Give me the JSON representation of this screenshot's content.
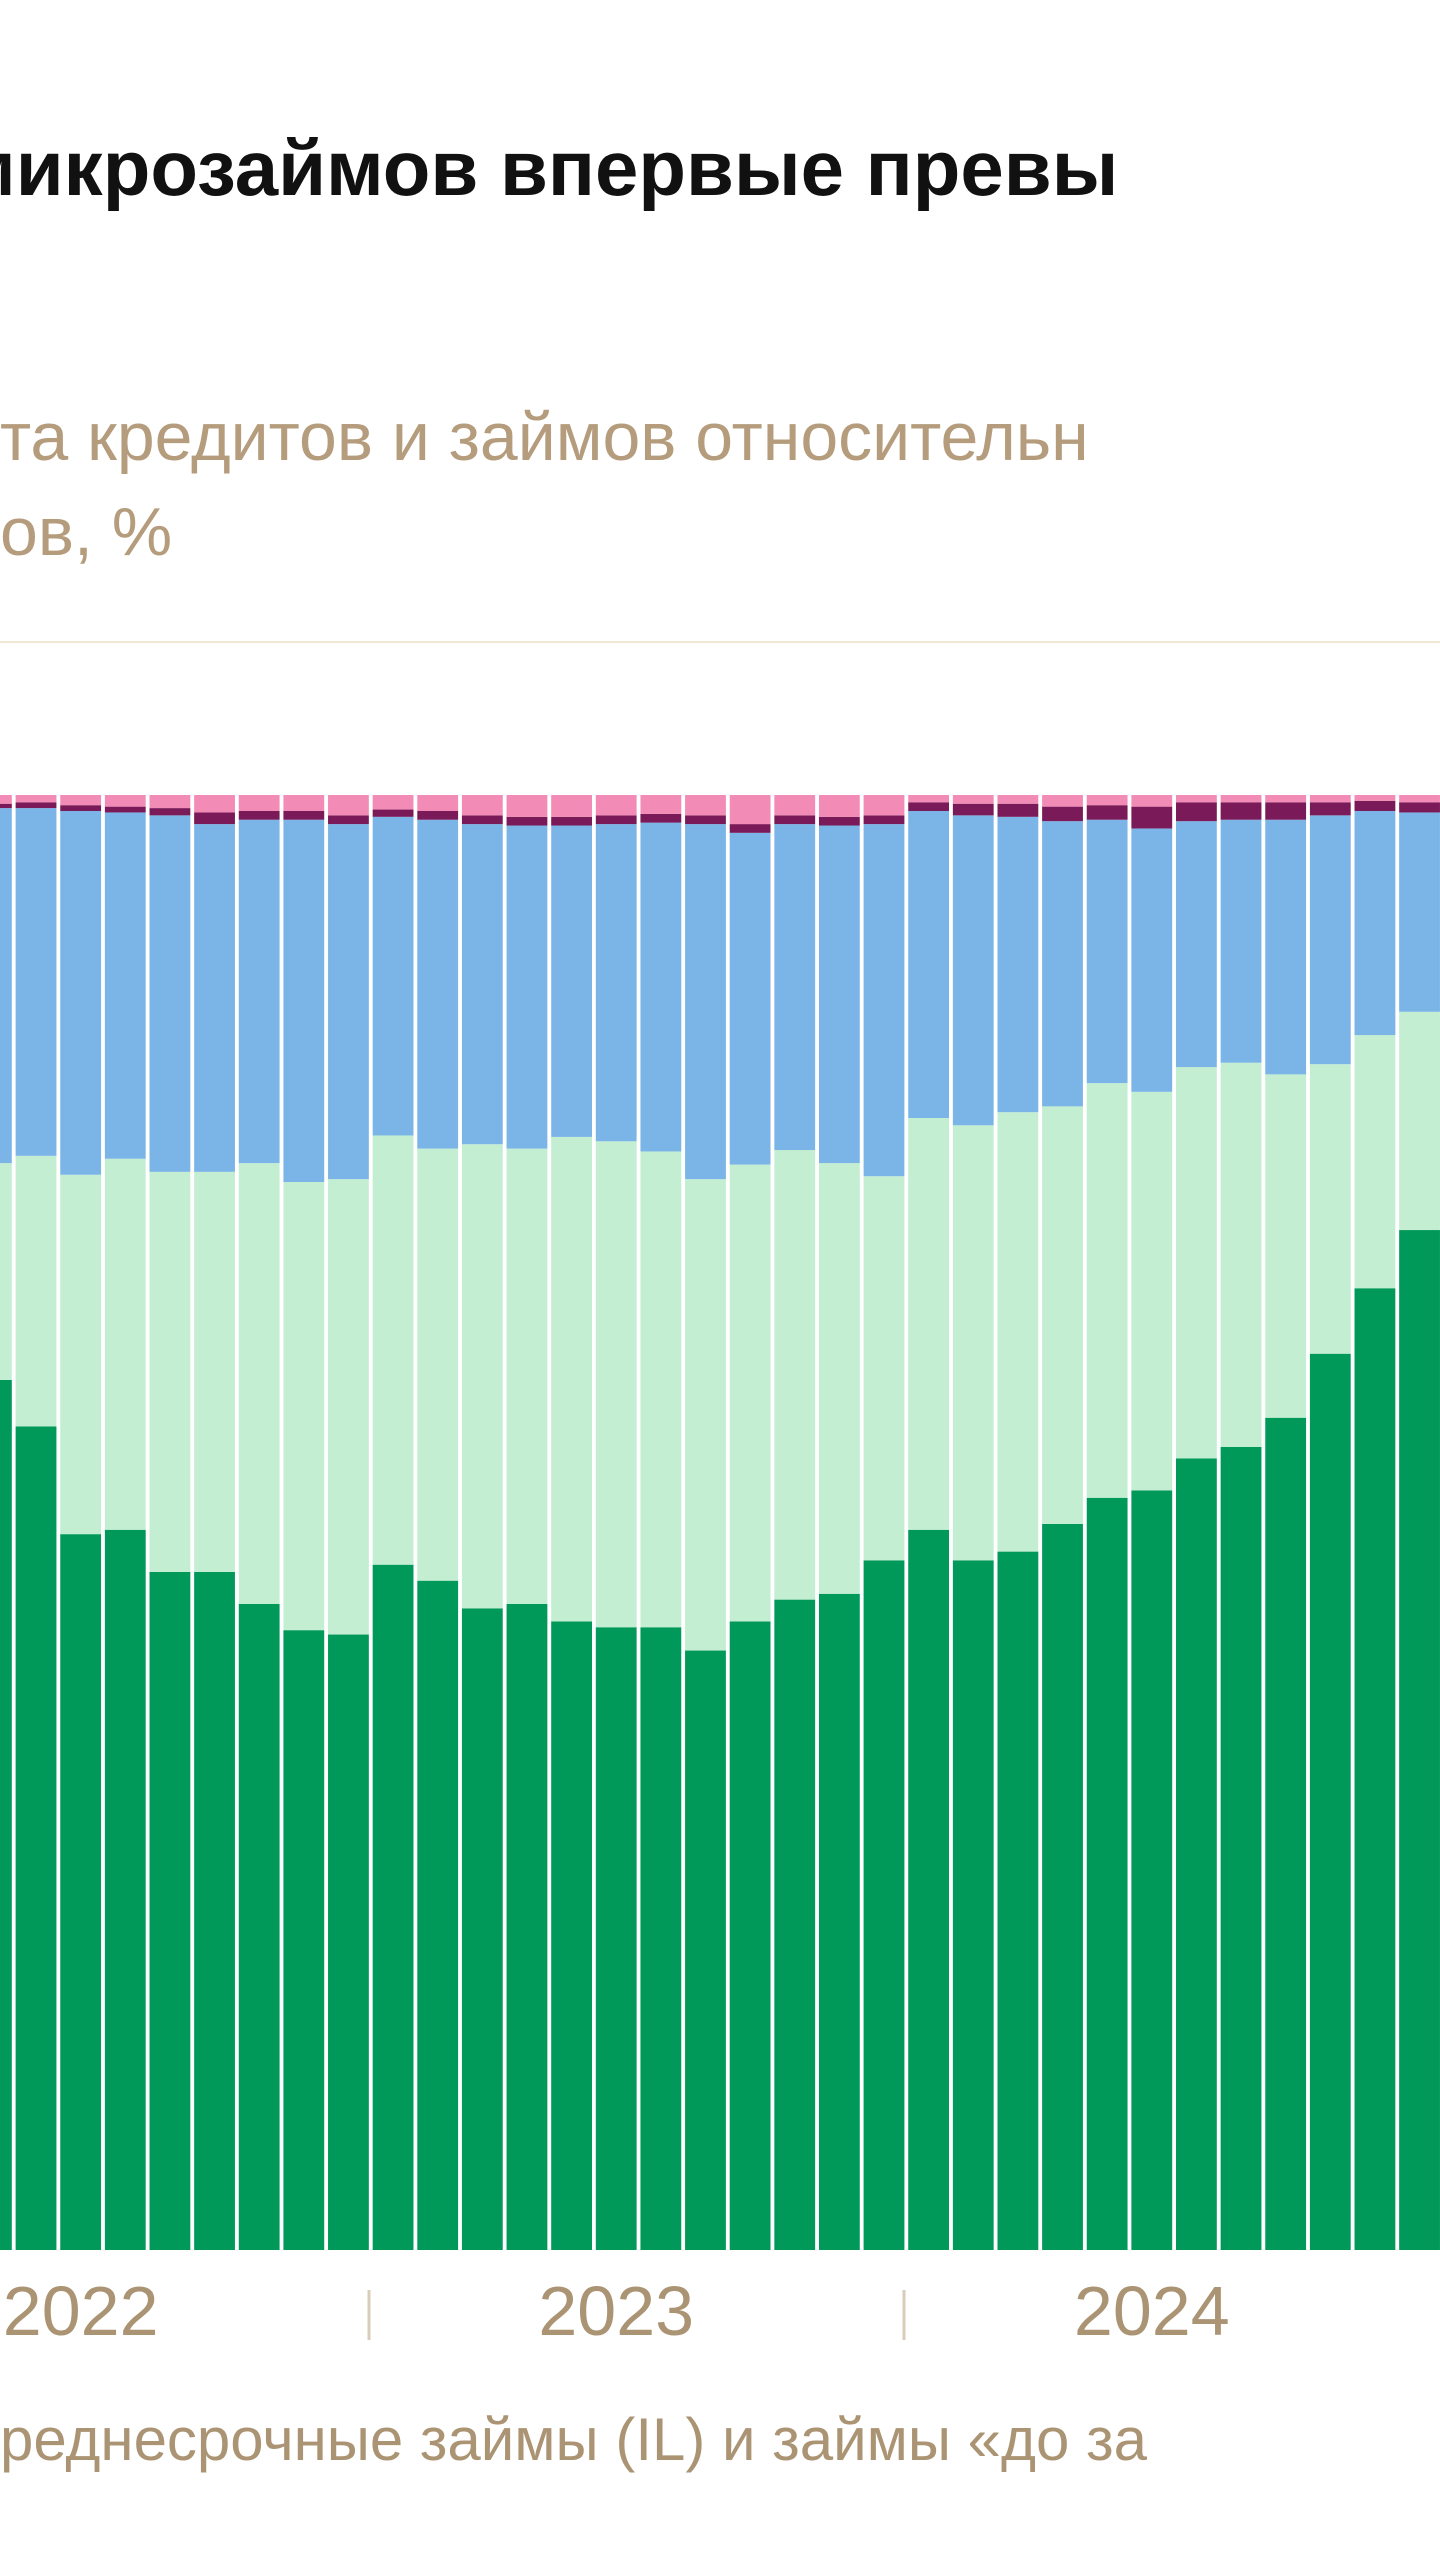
{
  "header": {
    "title": "микрозаймов впервые превы",
    "subtitle_lines": [
      "та кредитов и займов относительн",
      "ов, %"
    ]
  },
  "chart_data": {
    "type": "stacked_bar",
    "ylim": [
      0,
      100
    ],
    "categories": [
      null,
      null,
      "2022",
      null,
      null,
      null,
      null,
      null,
      null,
      null,
      null,
      null,
      null,
      null,
      "2023",
      null,
      null,
      null,
      null,
      null,
      null,
      null,
      null,
      null,
      null,
      null,
      "2024",
      null,
      null,
      null,
      null,
      null,
      null
    ],
    "series": [
      {
        "color": "#00995a",
        "values": [
          59.8,
          56.6,
          49.2,
          49.5,
          46.6,
          46.6,
          44.4,
          42.6,
          42.3,
          47.1,
          46.0,
          44.1,
          44.4,
          43.2,
          42.8,
          42.8,
          41.2,
          43.2,
          44.7,
          45.1,
          47.4,
          49.5,
          47.4,
          48.0,
          49.9,
          51.7,
          52.2,
          54.4,
          55.2,
          57.2,
          61.6,
          66.1,
          70.1
        ]
      },
      {
        "color": "#c3eed2",
        "values": [
          14.9,
          18.6,
          24.7,
          25.5,
          27.5,
          27.5,
          30.3,
          30.8,
          31.3,
          29.5,
          29.7,
          31.9,
          31.3,
          33.3,
          33.4,
          32.7,
          32.4,
          31.4,
          30.9,
          29.6,
          26.4,
          28.3,
          29.9,
          30.2,
          28.7,
          28.5,
          27.4,
          26.9,
          26.4,
          23.6,
          19.9,
          17.4,
          15.0
        ]
      },
      {
        "color": "#7bb5e8",
        "values": [
          24.4,
          23.9,
          25.0,
          23.8,
          24.5,
          23.9,
          23.6,
          24.9,
          24.4,
          21.9,
          22.6,
          22.0,
          22.2,
          21.4,
          21.8,
          22.6,
          24.4,
          22.8,
          22.4,
          23.2,
          24.2,
          21.1,
          21.3,
          20.3,
          19.6,
          18.1,
          18.1,
          16.9,
          16.7,
          17.5,
          17.1,
          15.4,
          13.7
        ]
      },
      {
        "color": "#7b1a58",
        "values": [
          0.3,
          0.4,
          0.4,
          0.4,
          0.5,
          0.8,
          0.6,
          0.6,
          0.6,
          0.5,
          0.6,
          0.6,
          0.6,
          0.6,
          0.6,
          0.6,
          0.6,
          0.6,
          0.6,
          0.6,
          0.6,
          0.6,
          0.8,
          0.9,
          1.0,
          1.0,
          1.5,
          1.3,
          1.2,
          1.2,
          0.9,
          0.7,
          0.7
        ]
      },
      {
        "color": "#f38bb7",
        "values": [
          0.6,
          0.5,
          0.7,
          0.8,
          0.9,
          1.2,
          1.1,
          1.1,
          1.4,
          1.0,
          1.1,
          1.4,
          1.5,
          1.5,
          1.4,
          1.3,
          1.4,
          2.0,
          1.4,
          1.5,
          1.4,
          0.5,
          0.6,
          0.6,
          0.8,
          0.7,
          0.8,
          0.5,
          0.5,
          0.5,
          0.5,
          0.4,
          0.5
        ]
      }
    ]
  },
  "footer": {
    "text": "реднесрочные займы (IL) и займы «до за"
  }
}
